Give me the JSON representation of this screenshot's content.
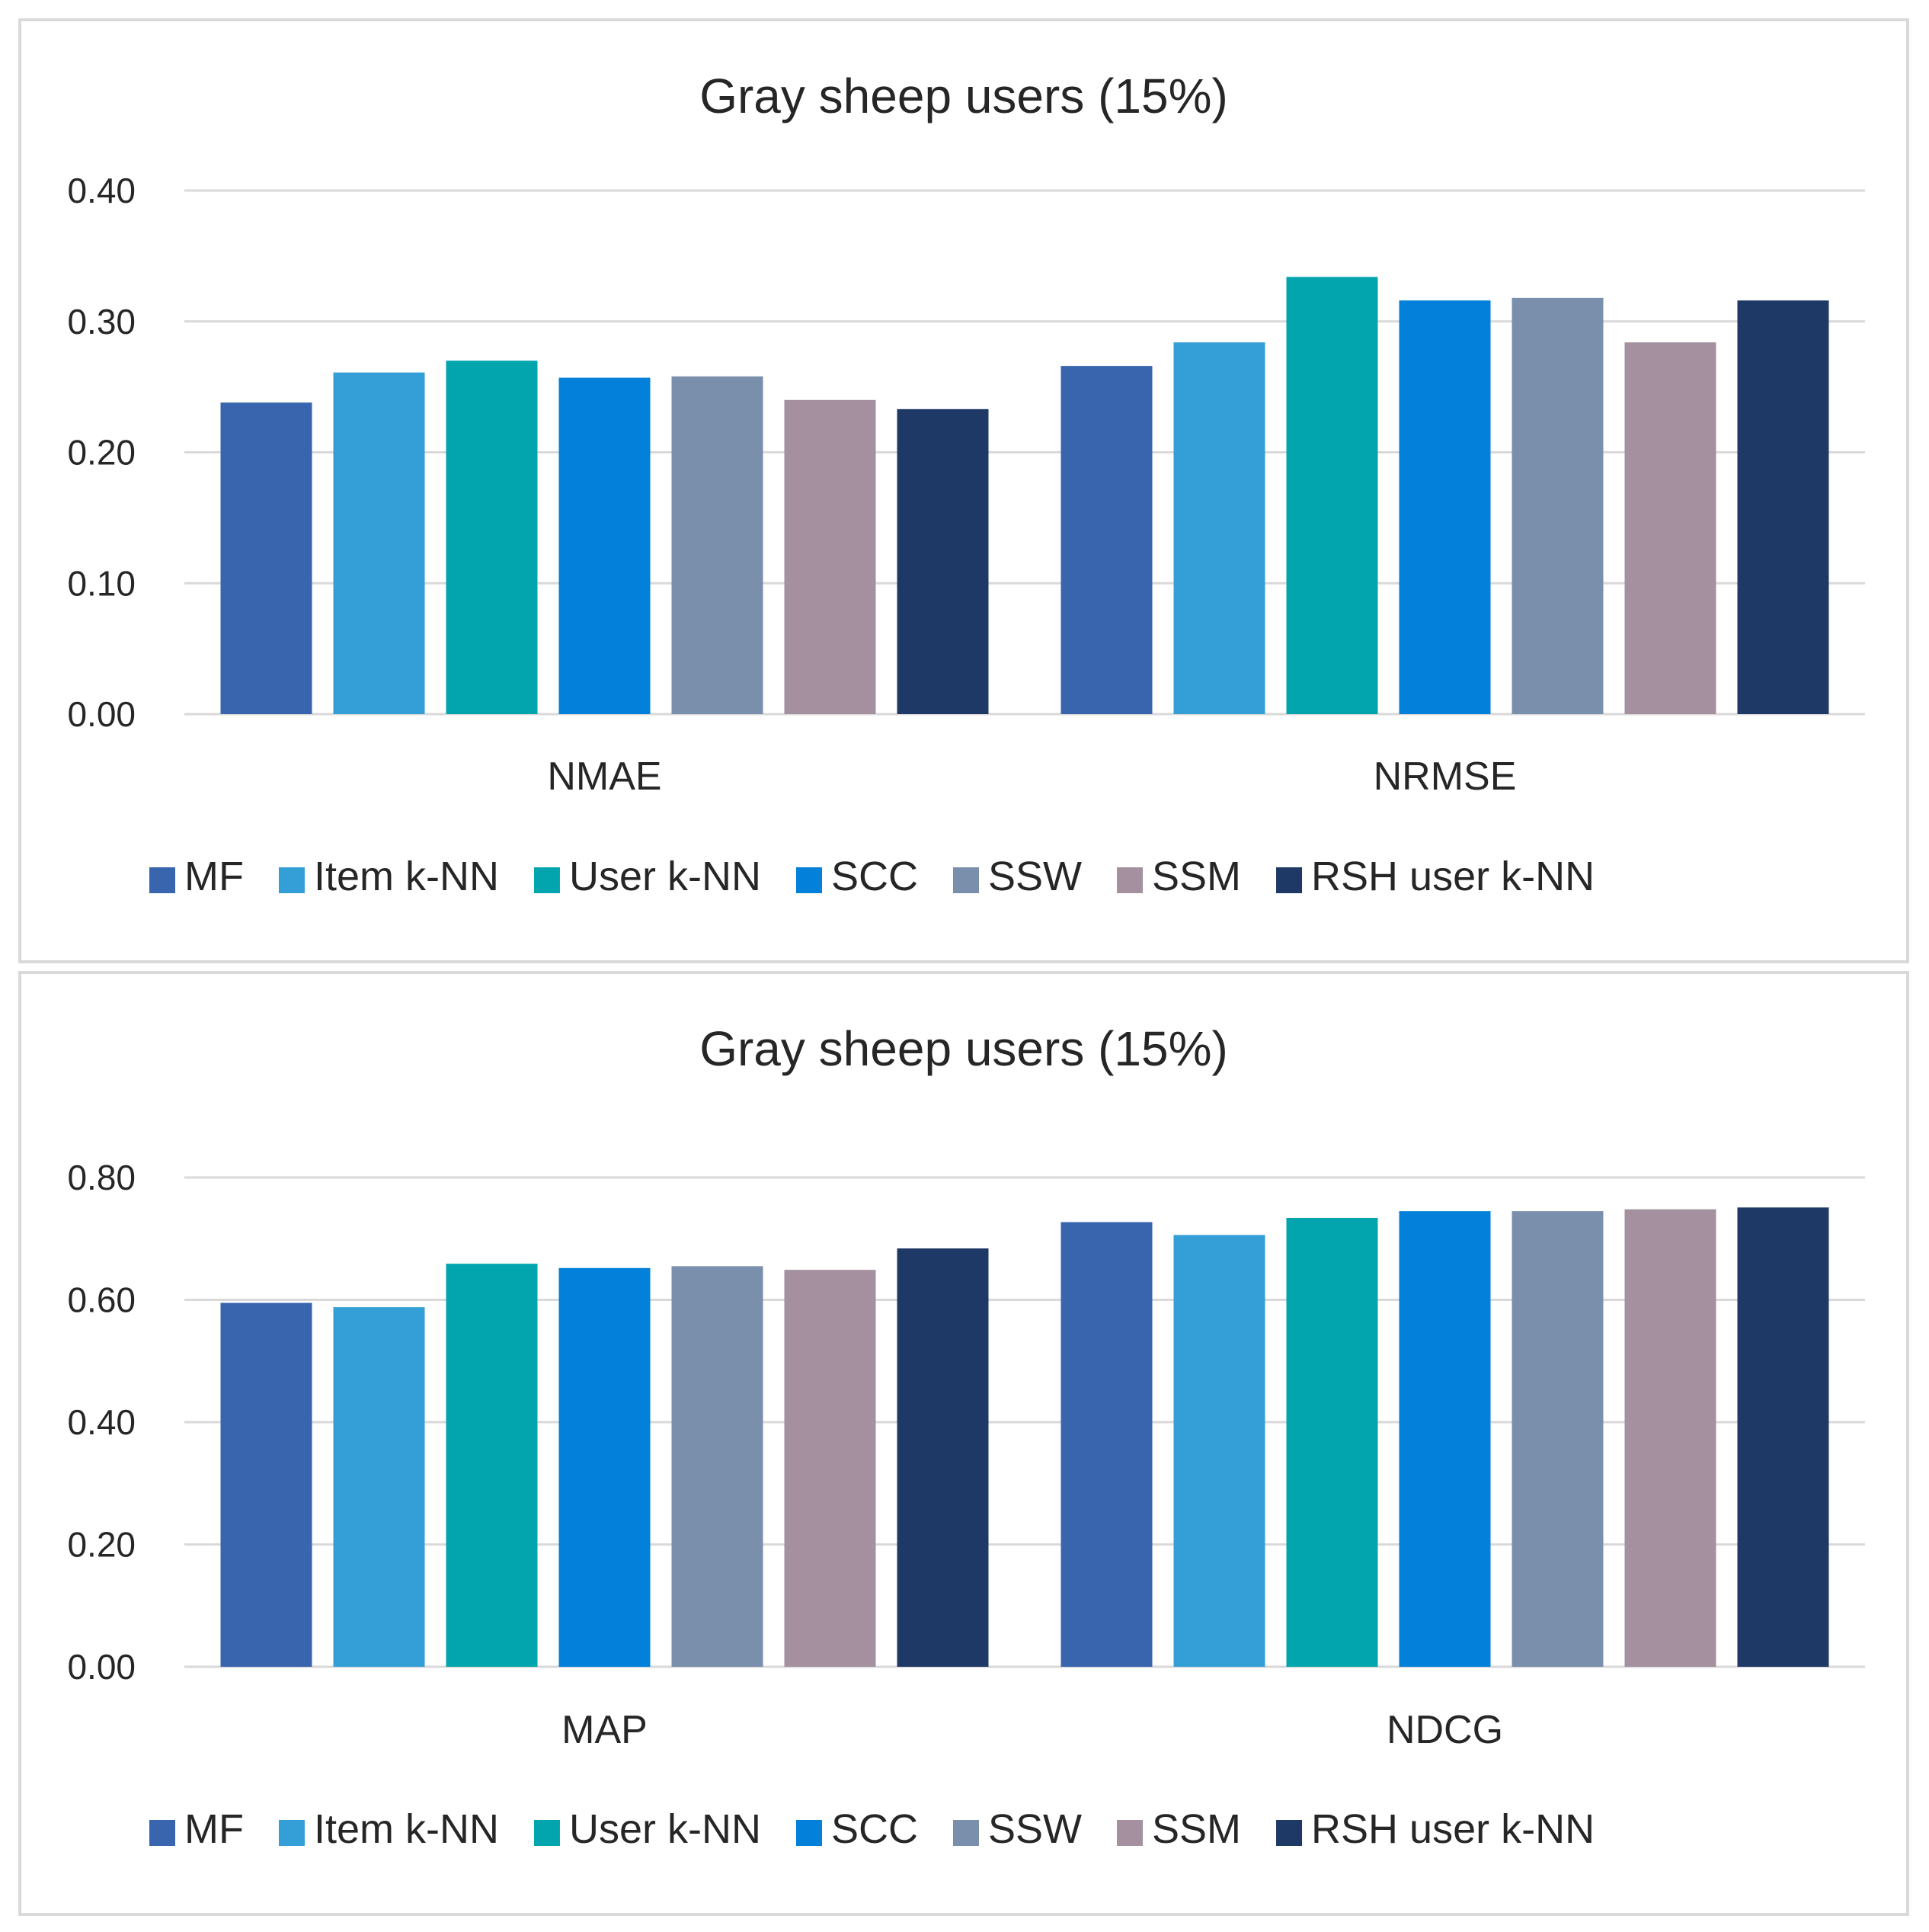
{
  "colors": {
    "MF": "#3865ae",
    "Item k-NN": "#349fd6",
    "User k-NN": "#02a5ad",
    "SCC": "#0380d9",
    "SSW": "#7a8fab",
    "SSM": "#a4909f",
    "RSH user k-NN": "#1f3966",
    "grid": "#d9d9d9",
    "text": "#262626"
  },
  "chart_data": [
    {
      "type": "bar",
      "title": "Gray sheep users (15%)",
      "categories": [
        "NMAE",
        "NRMSE"
      ],
      "series": [
        {
          "name": "MF",
          "values": [
            0.238,
            0.266
          ]
        },
        {
          "name": "Item k-NN",
          "values": [
            0.261,
            0.284
          ]
        },
        {
          "name": "User k-NN",
          "values": [
            0.27,
            0.334
          ]
        },
        {
          "name": "SCC",
          "values": [
            0.257,
            0.316
          ]
        },
        {
          "name": "SSW",
          "values": [
            0.258,
            0.318
          ]
        },
        {
          "name": "SSM",
          "values": [
            0.24,
            0.284
          ]
        },
        {
          "name": "RSH user k-NN",
          "values": [
            0.233,
            0.316
          ]
        }
      ],
      "ylim": [
        0,
        0.4
      ],
      "yticks": [
        "0.00",
        "0.10",
        "0.20",
        "0.30",
        "0.40"
      ],
      "grid": true,
      "legend": "bottom"
    },
    {
      "type": "bar",
      "title": "Gray sheep users (15%)",
      "categories": [
        "MAP",
        "NDCG"
      ],
      "series": [
        {
          "name": "MF",
          "values": [
            0.595,
            0.727
          ]
        },
        {
          "name": "Item k-NN",
          "values": [
            0.588,
            0.706
          ]
        },
        {
          "name": "User k-NN",
          "values": [
            0.659,
            0.734
          ]
        },
        {
          "name": "SCC",
          "values": [
            0.652,
            0.745
          ]
        },
        {
          "name": "SSW",
          "values": [
            0.655,
            0.745
          ]
        },
        {
          "name": "SSM",
          "values": [
            0.649,
            0.748
          ]
        },
        {
          "name": "RSH user k-NN",
          "values": [
            0.684,
            0.751
          ]
        }
      ],
      "ylim": [
        0,
        0.8
      ],
      "yticks": [
        "0.00",
        "0.20",
        "0.40",
        "0.60",
        "0.80"
      ],
      "grid": true,
      "legend": "bottom"
    }
  ]
}
